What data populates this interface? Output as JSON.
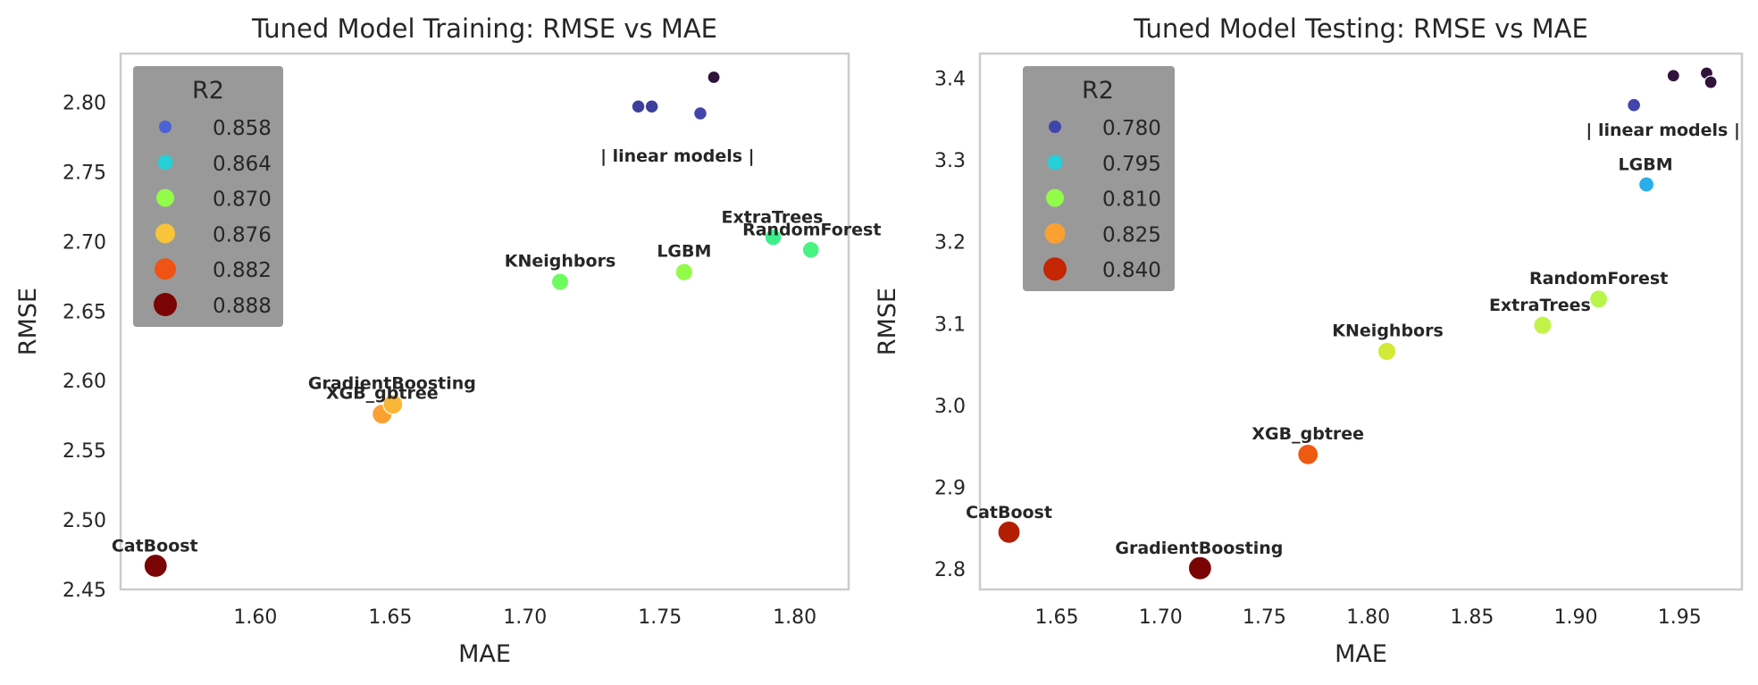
{
  "chart_data": [
    {
      "type": "scatter",
      "title": "Tuned Model Training: RMSE vs MAE",
      "xlabel": "MAE",
      "ylabel": "RMSE",
      "xlim": [
        1.55,
        1.82
      ],
      "ylim": [
        2.45,
        2.835
      ],
      "xticks": [
        "1.60",
        "1.65",
        "1.70",
        "1.75",
        "1.80"
      ],
      "yticks": [
        "2.45",
        "2.50",
        "2.55",
        "2.60",
        "2.65",
        "2.70",
        "2.75",
        "2.80"
      ],
      "grid": false,
      "legend": {
        "title": "R2",
        "placement": "top-left",
        "entries": [
          {
            "label": "0.858",
            "color": "#4a62d6"
          },
          {
            "label": "0.864",
            "color": "#27cfd6"
          },
          {
            "label": "0.870",
            "color": "#93fb4a"
          },
          {
            "label": "0.876",
            "color": "#f7c43a"
          },
          {
            "label": "0.882",
            "color": "#f05314"
          },
          {
            "label": "0.888",
            "color": "#7a0403"
          }
        ]
      },
      "points": [
        {
          "x": 1.563,
          "y": 2.467,
          "label": "CatBoost",
          "color": "#7a0403",
          "r2": 0.888
        },
        {
          "x": 1.647,
          "y": 2.576,
          "label": "XGB_gbtree",
          "color": "#fba032",
          "r2": 0.877
        },
        {
          "x": 1.651,
          "y": 2.583,
          "label": "GradientBoosting",
          "color": "#f9b637",
          "r2": 0.876
        },
        {
          "x": 1.713,
          "y": 2.671,
          "label": "KNeighbors",
          "color": "#6dfb5e",
          "r2": 0.868
        },
        {
          "x": 1.759,
          "y": 2.678,
          "label": "LGBM",
          "color": "#93fb4a",
          "r2": 0.869
        },
        {
          "x": 1.792,
          "y": 2.703,
          "label": "ExtraTrees",
          "color": "#3af08b",
          "r2": 0.866
        },
        {
          "x": 1.806,
          "y": 2.694,
          "label": "RandomForest",
          "color": "#49f383",
          "r2": 0.867
        },
        {
          "x": 1.742,
          "y": 2.797,
          "label": "",
          "color": "#3e3f9c",
          "r2": 0.855
        },
        {
          "x": 1.747,
          "y": 2.797,
          "label": "",
          "color": "#3e3f9c",
          "r2": 0.855
        },
        {
          "x": 1.765,
          "y": 2.792,
          "label": "",
          "color": "#4145ab",
          "r2": 0.855
        },
        {
          "x": 1.77,
          "y": 2.818,
          "label": "",
          "color": "#30123b",
          "r2": 0.853
        }
      ],
      "annotations": [
        {
          "text": "| linear models |",
          "x": 1.7565,
          "y": 2.762
        }
      ]
    },
    {
      "type": "scatter",
      "title": "Tuned Model Testing: RMSE vs MAE",
      "xlabel": "MAE",
      "ylabel": "RMSE",
      "xlim": [
        1.613,
        1.98
      ],
      "ylim": [
        2.775,
        3.43
      ],
      "xticks": [
        "1.65",
        "1.70",
        "1.75",
        "1.80",
        "1.85",
        "1.90",
        "1.95"
      ],
      "yticks": [
        "2.8",
        "2.9",
        "3.0",
        "3.1",
        "3.2",
        "3.3",
        "3.4"
      ],
      "grid": false,
      "legend": {
        "title": "R2",
        "placement": "top-left",
        "entries": [
          {
            "label": "0.780",
            "color": "#4145ab"
          },
          {
            "label": "0.795",
            "color": "#27cfd6"
          },
          {
            "label": "0.810",
            "color": "#93fb4a"
          },
          {
            "label": "0.825",
            "color": "#fba032"
          },
          {
            "label": "0.840",
            "color": "#c42503"
          }
        ]
      },
      "points": [
        {
          "x": 1.627,
          "y": 2.845,
          "label": "CatBoost",
          "color": "#b31e03",
          "r2": 0.843
        },
        {
          "x": 1.719,
          "y": 2.801,
          "label": "GradientBoosting",
          "color": "#7a0403",
          "r2": 0.849
        },
        {
          "x": 1.771,
          "y": 2.94,
          "label": "XGB_gbtree",
          "color": "#ef5a11",
          "r2": 0.83
        },
        {
          "x": 1.809,
          "y": 3.066,
          "label": "KNeighbors",
          "color": "#d2e935",
          "r2": 0.813
        },
        {
          "x": 1.884,
          "y": 3.098,
          "label": "ExtraTrees",
          "color": "#c2f34a",
          "r2": 0.812
        },
        {
          "x": 1.911,
          "y": 3.13,
          "label": "RandomForest",
          "color": "#b8f54a",
          "r2": 0.811
        },
        {
          "x": 1.934,
          "y": 3.27,
          "label": "LGBM",
          "color": "#28aee9",
          "r2": 0.792
        },
        {
          "x": 1.928,
          "y": 3.367,
          "label": "",
          "color": "#4145ab",
          "r2": 0.778
        },
        {
          "x": 1.947,
          "y": 3.403,
          "label": "",
          "color": "#30123b",
          "r2": 0.773
        },
        {
          "x": 1.963,
          "y": 3.406,
          "label": "",
          "color": "#30123b",
          "r2": 0.773
        },
        {
          "x": 1.965,
          "y": 3.395,
          "label": "",
          "color": "#30123b",
          "r2": 0.773
        }
      ],
      "annotations": [
        {
          "text": "| linear models |",
          "x": 1.942,
          "y": 3.337
        }
      ]
    }
  ]
}
